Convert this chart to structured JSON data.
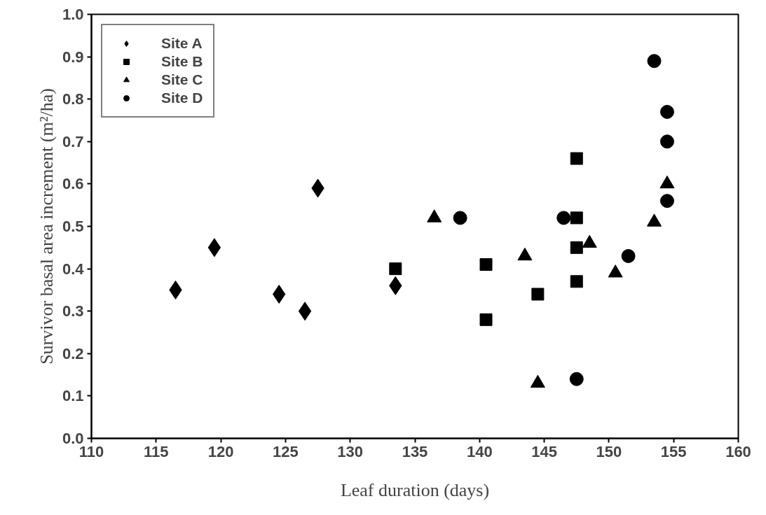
{
  "chart_data": {
    "type": "scatter",
    "xlabel": "Leaf duration (days)",
    "ylabel": "Survivor basal area increment (m²/ha)",
    "xlim": [
      110,
      160
    ],
    "xticks": [
      110,
      115,
      120,
      125,
      130,
      135,
      140,
      145,
      150,
      155,
      160
    ],
    "ylim": [
      0,
      1
    ],
    "yticks": [
      "0.0",
      0.1,
      0.2,
      0.3,
      0.4,
      0.5,
      0.6,
      0.7,
      0.8,
      0.9,
      "1.0"
    ],
    "grid": false,
    "legend": "top left",
    "series": [
      {
        "name": "Site A",
        "color": "#000000",
        "marker": "diamond",
        "x": [
          116.5,
          119.5,
          124.5,
          126.5,
          127.5,
          133.5
        ],
        "values": [
          0.35,
          0.45,
          0.34,
          0.3,
          0.59,
          0.36
        ]
      },
      {
        "name": "Site B",
        "color": "#000000",
        "marker": "square",
        "x": [
          133.5,
          140.5,
          140.5,
          144.5,
          147.5,
          147.5,
          147.5,
          147.5
        ],
        "values": [
          0.4,
          0.41,
          0.28,
          0.34,
          0.66,
          0.52,
          0.45,
          0.37
        ]
      },
      {
        "name": "Site C",
        "color": "#000000",
        "marker": "triangle",
        "x": [
          136.5,
          143.5,
          144.5,
          148.5,
          150.5,
          153.5,
          154.5
        ],
        "values": [
          0.52,
          0.43,
          0.13,
          0.46,
          0.39,
          0.51,
          0.6
        ]
      },
      {
        "name": "Site D",
        "color": "#000000",
        "marker": "circle",
        "x": [
          138.5,
          146.5,
          147.5,
          151.5,
          153.5,
          154.5,
          154.5,
          154.5
        ],
        "values": [
          0.52,
          0.52,
          0.14,
          0.43,
          0.89,
          0.77,
          0.7,
          0.56
        ]
      }
    ]
  }
}
